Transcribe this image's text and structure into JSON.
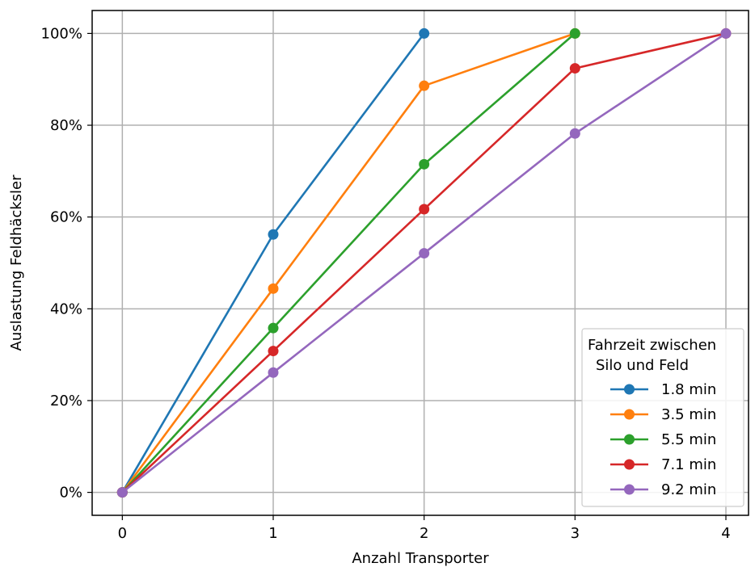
{
  "chart_data": {
    "type": "line",
    "xlabel": "Anzahl Transporter",
    "ylabel": "Auslastung Feldhäcksler",
    "x_ticks": [
      "0",
      "1",
      "2",
      "3",
      "4"
    ],
    "y_ticks": [
      "0%",
      "20%",
      "40%",
      "60%",
      "80%",
      "100%"
    ],
    "xlim": [
      -0.2,
      4.15
    ],
    "ylim": [
      -0.05,
      1.05
    ],
    "grid": true,
    "legend": {
      "title_line1": "Fahrzeit zwischen",
      "title_line2": "Silo und Feld",
      "placement": "lower-right"
    },
    "series": [
      {
        "name": "1.8 min",
        "color": "#1f77b4",
        "x": [
          0,
          1,
          2
        ],
        "y": [
          0.0,
          0.562,
          1.0
        ]
      },
      {
        "name": "3.5 min",
        "color": "#ff7f0e",
        "x": [
          0,
          1,
          2,
          3
        ],
        "y": [
          0.0,
          0.444,
          0.886,
          1.0
        ]
      },
      {
        "name": "5.5 min",
        "color": "#2ca02c",
        "x": [
          0,
          1,
          2,
          3
        ],
        "y": [
          0.0,
          0.358,
          0.715,
          1.0
        ]
      },
      {
        "name": "7.1 min",
        "color": "#d62728",
        "x": [
          0,
          1,
          2,
          3,
          4
        ],
        "y": [
          0.0,
          0.308,
          0.617,
          0.924,
          1.0
        ]
      },
      {
        "name": "9.2 min",
        "color": "#9467bd",
        "x": [
          0,
          1,
          2,
          3,
          4
        ],
        "y": [
          0.0,
          0.261,
          0.521,
          0.782,
          1.0
        ]
      }
    ]
  }
}
